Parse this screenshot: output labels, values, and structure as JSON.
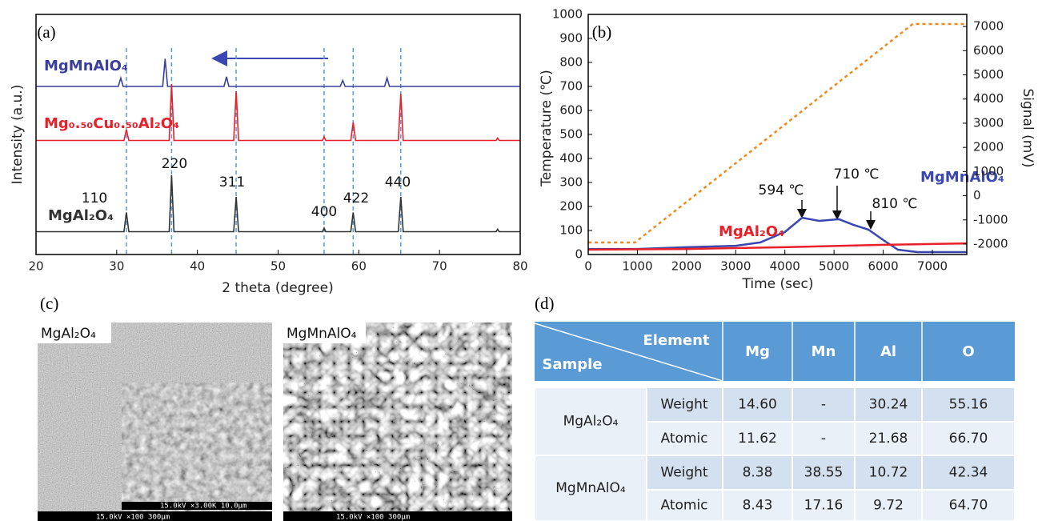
{
  "chart_data": [
    {
      "type": "line",
      "label": "(a)",
      "xlabel": "2 theta (degree)",
      "ylabel": "Intensity (a.u.)",
      "xlim": [
        20,
        80
      ],
      "ylim": [
        0,
        100
      ],
      "xticks": [
        20,
        30,
        40,
        50,
        60,
        70,
        80
      ],
      "series": [
        {
          "name": "MgMnAlO₄",
          "color": "#3a3f9e",
          "x": [
            20,
            30.2,
            30.5,
            30.8,
            35.7,
            36.0,
            36.3,
            43.3,
            43.6,
            43.9,
            57.7,
            58.0,
            58.3,
            63.2,
            63.5,
            63.8,
            80
          ],
          "values": [
            70,
            70,
            73.5,
            70,
            70,
            81.5,
            70,
            70,
            74,
            70,
            70,
            72.5,
            70,
            70,
            73.5,
            70,
            70
          ]
        },
        {
          "name": "Mg₀.₅₀Cu₀.₅₀Al₂O₄",
          "color": "#e8202a",
          "x": [
            20,
            30.9,
            31.2,
            31.5,
            36.5,
            36.8,
            37.1,
            44.5,
            44.8,
            45.1,
            55.5,
            55.7,
            55.9,
            59.0,
            59.3,
            59.6,
            64.9,
            65.2,
            65.5,
            77.0,
            77.2,
            77.4,
            80
          ],
          "values": [
            47.5,
            47.5,
            52,
            47.5,
            47.5,
            71,
            47.5,
            47.5,
            68,
            47.5,
            47.5,
            49,
            47.5,
            47.5,
            55,
            47.5,
            47.5,
            67,
            47.5,
            47.5,
            48.5,
            47.5,
            47.5
          ]
        },
        {
          "name": "MgAl₂O₄",
          "color": "#333333",
          "x": [
            20,
            30.9,
            31.2,
            31.5,
            36.5,
            36.8,
            37.1,
            44.5,
            44.8,
            45.1,
            55.5,
            55.7,
            55.9,
            59.0,
            59.3,
            59.6,
            64.9,
            65.2,
            65.5,
            77.0,
            77.2,
            77.4,
            80
          ],
          "values": [
            9.5,
            9.5,
            17.5,
            9.5,
            9.5,
            33,
            9.5,
            9.5,
            24,
            9.5,
            9.5,
            11,
            9.5,
            9.5,
            17.5,
            9.5,
            9.5,
            24,
            9.5,
            9.5,
            10.5,
            9.5,
            9.5
          ]
        }
      ],
      "reference_lines": {
        "color": "#5b9bd5",
        "x": [
          31.2,
          36.8,
          44.8,
          55.7,
          59.3,
          65.2
        ]
      },
      "annotations": [
        "110",
        "220",
        "311",
        "400",
        "422",
        "440"
      ]
    },
    {
      "type": "line",
      "label": "(b)",
      "xlabel": "Time (sec)",
      "ylabel": "Temperature (℃)",
      "y2label": "Signal (mV)",
      "xlim": [
        0,
        7700
      ],
      "ylim": [
        0,
        1000
      ],
      "y2lim": [
        -2430,
        7500
      ],
      "xticks": [
        0,
        1000,
        2000,
        3000,
        4000,
        5000,
        6000,
        7000
      ],
      "yticks": [
        0,
        100,
        200,
        300,
        400,
        500,
        600,
        700,
        800,
        900,
        1000
      ],
      "y2ticks": [
        -2000,
        -1000,
        0,
        1000,
        2000,
        3000,
        4000,
        5000,
        6000,
        7000
      ],
      "series": [
        {
          "color": "#f08a1c",
          "style": "dotted",
          "x": [
            0,
            950,
            6600,
            7700
          ],
          "values": [
            50,
            50,
            960,
            960
          ]
        },
        {
          "name": "MgMnAlO₄",
          "color": "#3a47b0",
          "axis": "y2",
          "x": [
            0,
            1000,
            2000,
            3000,
            3500,
            4000,
            4350,
            4700,
            5100,
            5400,
            5700,
            6000,
            6300,
            6700,
            7700
          ],
          "values": [
            -2200,
            -2200,
            -2130,
            -2070,
            -1930,
            -1500,
            -910,
            -1040,
            -970,
            -1210,
            -1400,
            -1830,
            -2230,
            -2330,
            -2330
          ]
        },
        {
          "name": "MgAl₂O₄",
          "color": "#e8202a",
          "axis": "y2",
          "x": [
            0,
            2000,
            4000,
            6000,
            7700
          ],
          "values": [
            -2230,
            -2200,
            -2130,
            -2030,
            -1970
          ]
        }
      ],
      "annotations": [
        "594 ℃",
        "710 ℃",
        "810 ℃"
      ]
    }
  ],
  "sem": {
    "label": "(c)",
    "images": [
      {
        "sample": "MgAl₂O₄",
        "scale_bar": "15.0kV   ×100    300μm",
        "inset_scale_bar": "15.0kV ×3.00K  10.0μm"
      },
      {
        "sample": "MgMnAlO₄",
        "scale_bar": "15.0kV   ×100    300μm"
      }
    ]
  },
  "table": {
    "label": "(d)",
    "corner_top": "Element",
    "corner_bottom": "Sample",
    "columns": [
      "Mg",
      "Mn",
      "Al",
      "O"
    ],
    "groups": [
      {
        "sample": "MgAl₂O₄",
        "rows": [
          {
            "basis": "Weight",
            "cells": [
              "14.60",
              "-",
              "30.24",
              "55.16"
            ]
          },
          {
            "basis": "Atomic",
            "cells": [
              "11.62",
              "-",
              "21.68",
              "66.70"
            ]
          }
        ]
      },
      {
        "sample": "MgMnAlO₄",
        "rows": [
          {
            "basis": "Weight",
            "cells": [
              "8.38",
              "38.55",
              "10.72",
              "42.34"
            ]
          },
          {
            "basis": "Atomic",
            "cells": [
              "8.43",
              "17.16",
              "9.72",
              "64.70"
            ]
          }
        ]
      }
    ]
  }
}
